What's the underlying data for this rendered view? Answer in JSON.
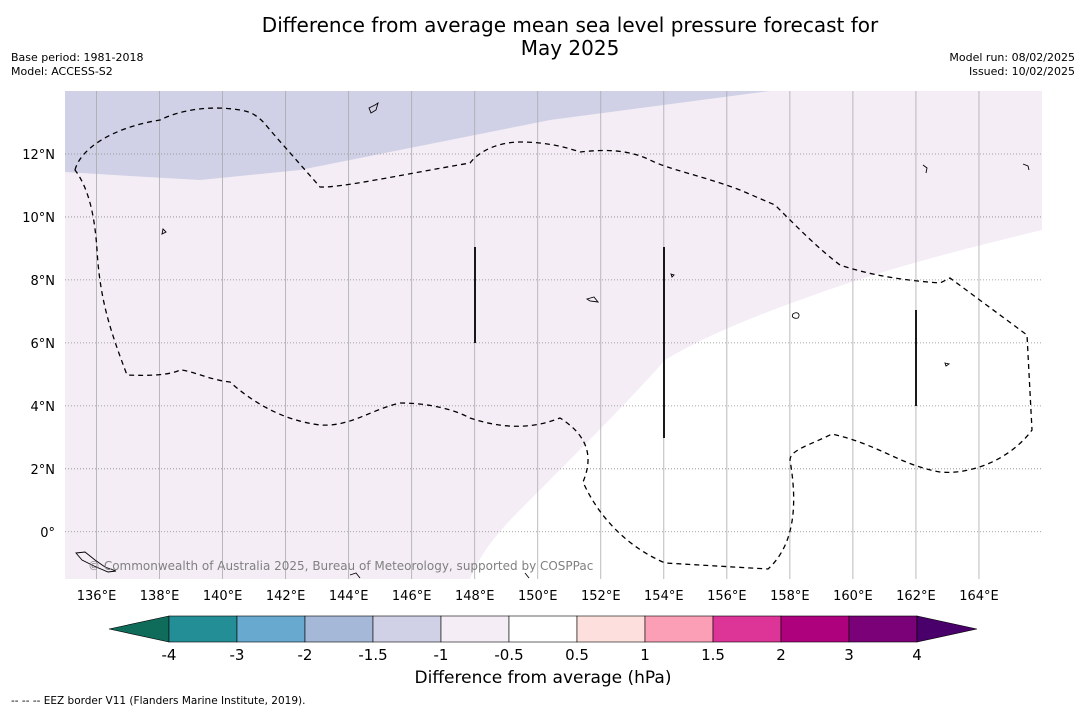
{
  "title": {
    "line1": "Difference from average mean sea level pressure forecast for",
    "line2": "May 2025"
  },
  "meta_left": {
    "base_period": "Base period: 1981-2018",
    "model": "Model: ACCESS-S2"
  },
  "meta_right": {
    "model_run": "Model run: 08/02/2025",
    "issued": "Issued: 10/02/2025"
  },
  "map": {
    "lon_range": [
      135,
      166
    ],
    "lat_range": [
      -1.5,
      14
    ],
    "lon_ticks": [
      "136°E",
      "138°E",
      "140°E",
      "142°E",
      "144°E",
      "146°E",
      "148°E",
      "150°E",
      "152°E",
      "154°E",
      "156°E",
      "158°E",
      "160°E",
      "162°E",
      "164°E"
    ],
    "lat_ticks": [
      "12°N",
      "10°N",
      "8°N",
      "6°N",
      "4°N",
      "2°N",
      "0°"
    ],
    "grid": true,
    "copyright": "© Commonwealth of Australia 2025, Bureau of Meteorology, supported by COSPPac",
    "fill_categories": {
      "-1.5 to -1": "#d0d1e6",
      "-1 to -0.5": "#f4edf6",
      "-0.5 to 0.5": "#ffffff"
    }
  },
  "colorbar": {
    "labels": [
      "-4",
      "-3",
      "-2",
      "-1.5",
      "-1",
      "-0.5",
      "0.5",
      "1",
      "1.5",
      "2",
      "3",
      "4"
    ],
    "colors": [
      "#238e96",
      "#67a9cf",
      "#a6b8d8",
      "#d0d1e6",
      "#f4edf6",
      "#ffffff",
      "#fde0dd",
      "#fa9fb5",
      "#dd3497",
      "#ae017e",
      "#7a0177"
    ],
    "extend_low_color": "#0f6b5a",
    "extend_high_color": "#49006a",
    "title": "Difference from average (hPa)"
  },
  "footer": "--  --  -- EEZ border V11 (Flanders Marine Institute, 2019)."
}
